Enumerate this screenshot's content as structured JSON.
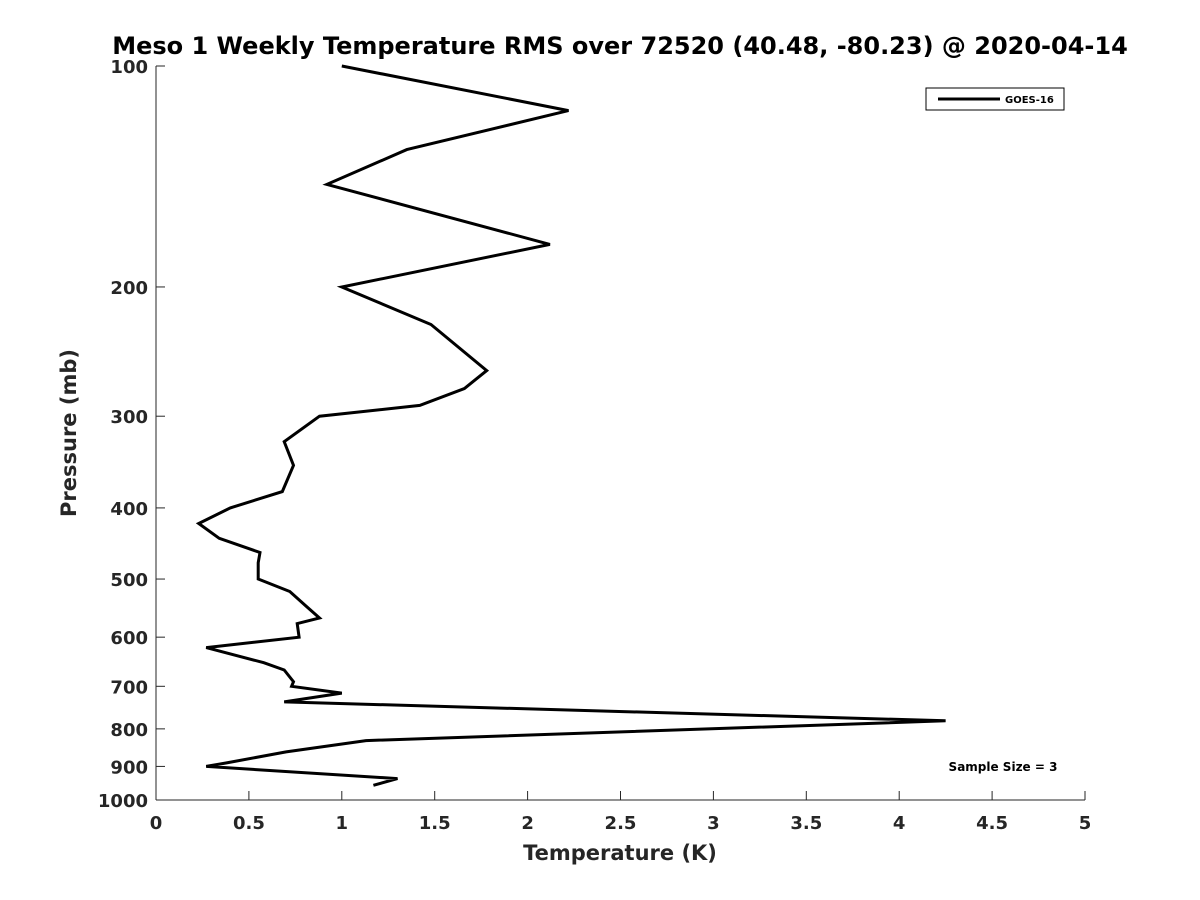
{
  "chart_data": {
    "type": "line",
    "title": "Meso 1 Weekly Temperature RMS over 72520 (40.48, -80.23) @ 2020-04-14",
    "xlabel": "Temperature (K)",
    "ylabel": "Pressure (mb)",
    "xlim": [
      0,
      5
    ],
    "ylim": [
      100,
      1000
    ],
    "y_scale": "log",
    "y_reversed": true,
    "x_ticks": [
      "0",
      "0.5",
      "1",
      "1.5",
      "2",
      "2.5",
      "3",
      "3.5",
      "4",
      "4.5",
      "5"
    ],
    "y_ticks": [
      "100",
      "200",
      "300",
      "400",
      "500",
      "600",
      "700",
      "800",
      "900",
      "1000"
    ],
    "grid": false,
    "legend_position": "top-right",
    "series": [
      {
        "name": "GOES-16",
        "color": "#000000",
        "points": [
          [
            1.0,
            100
          ],
          [
            2.22,
            115
          ],
          [
            1.35,
            130
          ],
          [
            0.92,
            145
          ],
          [
            2.12,
            175
          ],
          [
            1.0,
            200
          ],
          [
            1.48,
            225
          ],
          [
            1.78,
            260
          ],
          [
            1.66,
            275
          ],
          [
            1.42,
            290
          ],
          [
            0.88,
            300
          ],
          [
            0.69,
            325
          ],
          [
            0.74,
            350
          ],
          [
            0.68,
            380
          ],
          [
            0.4,
            400
          ],
          [
            0.23,
            420
          ],
          [
            0.34,
            440
          ],
          [
            0.56,
            460
          ],
          [
            0.55,
            475
          ],
          [
            0.55,
            500
          ],
          [
            0.72,
            520
          ],
          [
            0.81,
            545
          ],
          [
            0.88,
            565
          ],
          [
            0.76,
            575
          ],
          [
            0.77,
            600
          ],
          [
            0.27,
            620
          ],
          [
            0.58,
            650
          ],
          [
            0.69,
            665
          ],
          [
            0.74,
            690
          ],
          [
            0.73,
            700
          ],
          [
            1.0,
            715
          ],
          [
            0.69,
            735
          ],
          [
            4.25,
            780
          ],
          [
            1.13,
            830
          ],
          [
            0.7,
            860
          ],
          [
            0.38,
            890
          ],
          [
            0.27,
            900
          ],
          [
            1.3,
            935
          ],
          [
            1.17,
            955
          ]
        ]
      }
    ],
    "annotation": "Sample Size = 3"
  }
}
